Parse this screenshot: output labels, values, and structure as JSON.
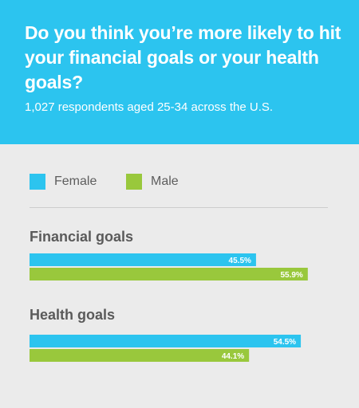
{
  "header": {
    "title": "Do you think you’re more likely to hit your financial goals or your health goals?",
    "subtitle": "1,027 respondents aged 25-34 across the U.S."
  },
  "colors": {
    "header_bg": "#2cc4ef",
    "female": "#2cc4ef",
    "male": "#99c83c",
    "background": "#ebebeb"
  },
  "chart_data": {
    "type": "bar",
    "orientation": "horizontal",
    "title": "Do you think you’re more likely to hit your financial goals or your health goals?",
    "subtitle": "1,027 respondents aged 25-34 across the U.S.",
    "categories": [
      "Financial goals",
      "Health goals"
    ],
    "series": [
      {
        "name": "Female",
        "values": [
          45.5,
          54.5
        ],
        "labels": [
          "45.5%",
          "54.5%"
        ]
      },
      {
        "name": "Male",
        "values": [
          55.9,
          44.1
        ],
        "labels": [
          "55.9%",
          "44.1%"
        ]
      }
    ],
    "unit": "%",
    "xlim": [
      0,
      60
    ],
    "legend": "top-left",
    "grid": false
  }
}
